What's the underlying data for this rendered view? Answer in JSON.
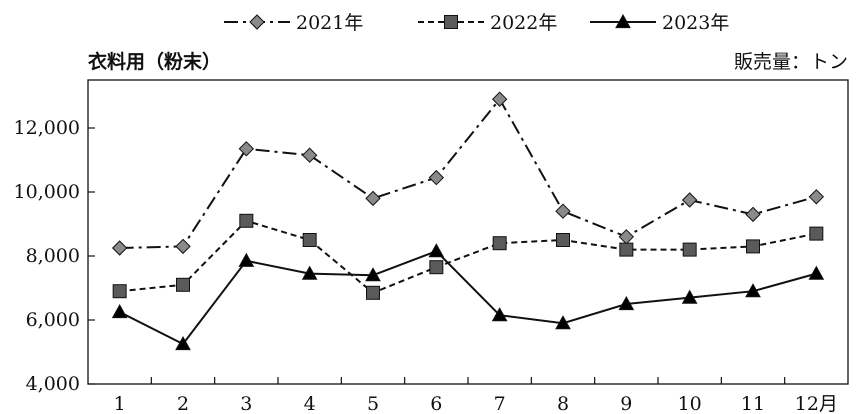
{
  "chart_data": {
    "type": "line",
    "title": "衣料用（粉末）",
    "unit_label": "販売量：トン",
    "categories": [
      "1",
      "2",
      "3",
      "4",
      "5",
      "6",
      "7",
      "8",
      "9",
      "10",
      "11",
      "12月"
    ],
    "ylim": [
      4000,
      13500
    ],
    "yticks": [
      4000,
      6000,
      8000,
      10000,
      12000
    ],
    "ytick_labels": [
      "4,000",
      "6,000",
      "8,000",
      "10,000",
      "12,000"
    ],
    "grid": false,
    "legend_position": "top-center",
    "series": [
      {
        "name": "2021年",
        "marker": "diamond",
        "line_style": "dash-dot",
        "marker_color": "#8a8a8a",
        "values": [
          8250,
          8300,
          11350,
          11150,
          9800,
          10450,
          12900,
          9400,
          8600,
          9750,
          9300,
          9850
        ]
      },
      {
        "name": "2022年",
        "marker": "square",
        "line_style": "dashed",
        "marker_color": "#5a5a5a",
        "values": [
          6900,
          7100,
          9100,
          8500,
          6850,
          7650,
          8400,
          8500,
          8200,
          8200,
          8300,
          8700
        ]
      },
      {
        "name": "2023年",
        "marker": "triangle",
        "line_style": "solid",
        "marker_color": "#000000",
        "values": [
          6250,
          5250,
          7850,
          7450,
          7400,
          8150,
          6150,
          5900,
          6500,
          6700,
          6900,
          7450
        ]
      }
    ]
  }
}
